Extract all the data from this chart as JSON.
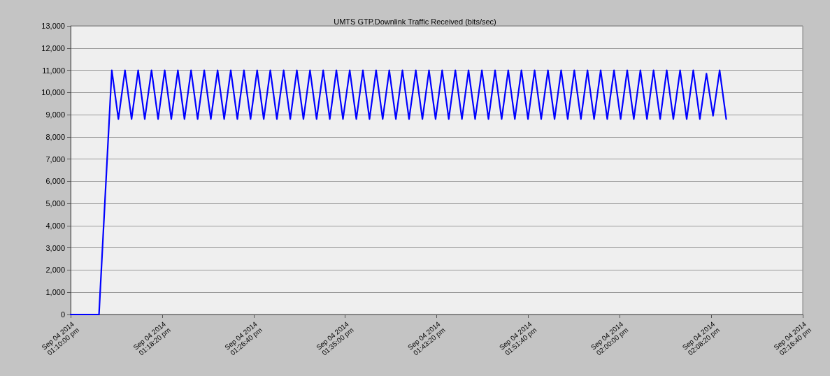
{
  "chart_data": {
    "type": "line",
    "title": "UMTS GTP.Downlink Traffic Received (bits/sec)",
    "x": [
      "2014-09-04T13:10:00",
      "2014-09-04T13:12:35",
      "2014-09-04T13:13:45",
      "2014-09-04T13:14:21",
      "2014-09-04T13:14:57",
      "2014-09-04T13:15:33",
      "2014-09-04T13:16:09",
      "2014-09-04T13:16:45",
      "2014-09-04T13:17:22",
      "2014-09-04T13:17:58",
      "2014-09-04T13:18:34",
      "2014-09-04T13:19:10",
      "2014-09-04T13:19:46",
      "2014-09-04T13:20:22",
      "2014-09-04T13:20:58",
      "2014-09-04T13:21:34",
      "2014-09-04T13:22:10",
      "2014-09-04T13:22:46",
      "2014-09-04T13:23:23",
      "2014-09-04T13:23:59",
      "2014-09-04T13:24:35",
      "2014-09-04T13:25:11",
      "2014-09-04T13:25:47",
      "2014-09-04T13:26:23",
      "2014-09-04T13:26:59",
      "2014-09-04T13:27:35",
      "2014-09-04T13:28:11",
      "2014-09-04T13:28:47",
      "2014-09-04T13:29:24",
      "2014-09-04T13:30:00",
      "2014-09-04T13:30:36",
      "2014-09-04T13:31:12",
      "2014-09-04T13:31:48",
      "2014-09-04T13:32:24",
      "2014-09-04T13:33:00",
      "2014-09-04T13:33:36",
      "2014-09-04T13:34:12",
      "2014-09-04T13:34:48",
      "2014-09-04T13:35:25",
      "2014-09-04T13:36:01",
      "2014-09-04T13:36:37",
      "2014-09-04T13:37:13",
      "2014-09-04T13:37:49",
      "2014-09-04T13:38:25",
      "2014-09-04T13:39:01",
      "2014-09-04T13:39:37",
      "2014-09-04T13:40:13",
      "2014-09-04T13:40:49",
      "2014-09-04T13:41:26",
      "2014-09-04T13:42:02",
      "2014-09-04T13:42:38",
      "2014-09-04T13:43:14",
      "2014-09-04T13:43:50",
      "2014-09-04T13:44:26",
      "2014-09-04T13:45:02",
      "2014-09-04T13:45:38",
      "2014-09-04T13:46:14",
      "2014-09-04T13:46:50",
      "2014-09-04T13:47:27",
      "2014-09-04T13:48:03",
      "2014-09-04T13:48:39",
      "2014-09-04T13:49:15",
      "2014-09-04T13:49:51",
      "2014-09-04T13:50:27",
      "2014-09-04T13:51:03",
      "2014-09-04T13:51:39",
      "2014-09-04T13:52:15",
      "2014-09-04T13:52:51",
      "2014-09-04T13:53:28",
      "2014-09-04T13:54:04",
      "2014-09-04T13:54:40",
      "2014-09-04T13:55:16",
      "2014-09-04T13:55:52",
      "2014-09-04T13:56:28",
      "2014-09-04T13:57:04",
      "2014-09-04T13:57:40",
      "2014-09-04T13:58:16",
      "2014-09-04T13:58:52",
      "2014-09-04T13:59:29",
      "2014-09-04T14:00:05",
      "2014-09-04T14:00:41",
      "2014-09-04T14:01:17",
      "2014-09-04T14:01:53",
      "2014-09-04T14:02:29",
      "2014-09-04T14:03:05",
      "2014-09-04T14:03:41",
      "2014-09-04T14:04:17",
      "2014-09-04T14:04:53",
      "2014-09-04T14:05:30",
      "2014-09-04T14:06:06",
      "2014-09-04T14:06:42",
      "2014-09-04T14:07:18",
      "2014-09-04T14:07:54",
      "2014-09-04T14:08:30",
      "2014-09-04T14:09:06",
      "2014-09-04T14:09:42"
    ],
    "series": [
      {
        "color": "#0000ff",
        "values": [
          0,
          0,
          11000,
          8800,
          11000,
          8800,
          11000,
          8800,
          11000,
          8800,
          11000,
          8800,
          11000,
          8800,
          11000,
          8800,
          11000,
          8800,
          11000,
          8800,
          11000,
          8800,
          11000,
          8800,
          11000,
          8800,
          11000,
          8800,
          11000,
          8800,
          11000,
          8800,
          11000,
          8800,
          11000,
          8800,
          11000,
          8800,
          11000,
          8800,
          11000,
          8800,
          11000,
          8800,
          11000,
          8800,
          11000,
          8800,
          11000,
          8800,
          11000,
          8800,
          11000,
          8800,
          11000,
          8800,
          11000,
          8800,
          11000,
          8800,
          11000,
          8800,
          11000,
          8800,
          11000,
          8800,
          11000,
          8800,
          11000,
          8800,
          11000,
          8800,
          11000,
          8800,
          11000,
          8800,
          11000,
          8800,
          11000,
          8800,
          11000,
          8800,
          11000,
          8800,
          11000,
          8800,
          11000,
          8800,
          11000,
          8800,
          11000,
          8800,
          10850,
          8950,
          11000,
          8800
        ]
      }
    ],
    "xlim": [
      "2014-09-04T13:10:00",
      "2014-09-04T14:16:40"
    ],
    "xticks": [
      {
        "value": "2014-09-04T13:10:00",
        "label": "Sep 04 2014\n01:10:00 pm"
      },
      {
        "value": "2014-09-04T13:18:20",
        "label": "Sep 04 2014\n01:18:20 pm"
      },
      {
        "value": "2014-09-04T13:26:40",
        "label": "Sep 04 2014\n01:26:40 pm"
      },
      {
        "value": "2014-09-04T13:35:00",
        "label": "Sep 04 2014\n01:35:00 pm"
      },
      {
        "value": "2014-09-04T13:43:20",
        "label": "Sep 04 2014\n01:43:20 pm"
      },
      {
        "value": "2014-09-04T13:51:40",
        "label": "Sep 04 2014\n01:51:40 pm"
      },
      {
        "value": "2014-09-04T14:00:00",
        "label": "Sep 04 2014\n02:00:00 pm"
      },
      {
        "value": "2014-09-04T14:08:20",
        "label": "Sep 04 2014\n02:08:20 pm"
      },
      {
        "value": "2014-09-04T14:16:40",
        "label": "Sep 04 2014\n02:16:40 pm"
      }
    ],
    "ylim": [
      0,
      13000
    ],
    "yticks": [
      0,
      {
        "value": 1000,
        "label": "1,000"
      },
      {
        "value": 2000,
        "label": "2,000"
      },
      {
        "value": 3000,
        "label": "3,000"
      },
      {
        "value": 4000,
        "label": "4,000"
      },
      {
        "value": 5000,
        "label": "5,000"
      },
      {
        "value": 6000,
        "label": "6,000"
      },
      {
        "value": 7000,
        "label": "7,000"
      },
      {
        "value": 8000,
        "label": "8,000"
      },
      {
        "value": 9000,
        "label": "9,000"
      },
      {
        "value": 10000,
        "label": "10,000"
      },
      {
        "value": 11000,
        "label": "11,000"
      },
      {
        "value": 12000,
        "label": "12,000"
      },
      {
        "value": 13000,
        "label": "13,000"
      }
    ],
    "grid": "y",
    "marker": "none",
    "line_style": "solid"
  }
}
